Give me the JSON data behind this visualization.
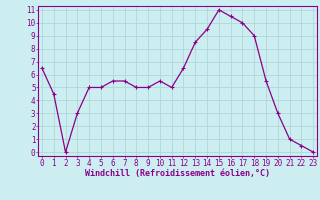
{
  "x": [
    0,
    1,
    2,
    3,
    4,
    5,
    6,
    7,
    8,
    9,
    10,
    11,
    12,
    13,
    14,
    15,
    16,
    17,
    18,
    19,
    20,
    21,
    22,
    23
  ],
  "y": [
    6.5,
    4.5,
    0.0,
    3.0,
    5.0,
    5.0,
    5.5,
    5.5,
    5.0,
    5.0,
    5.5,
    5.0,
    6.5,
    8.5,
    9.5,
    11.0,
    10.5,
    10.0,
    9.0,
    5.5,
    3.0,
    1.0,
    0.5,
    0.0
  ],
  "line_color": "#8B008B",
  "marker": "+",
  "bg_color": "#cdeef0",
  "grid_color": "#b0d8d8",
  "ylabel_ticks": [
    0,
    1,
    2,
    3,
    4,
    5,
    6,
    7,
    8,
    9,
    10,
    11
  ],
  "xlabel_ticks": [
    0,
    1,
    2,
    3,
    4,
    5,
    6,
    7,
    8,
    9,
    10,
    11,
    12,
    13,
    14,
    15,
    16,
    17,
    18,
    19,
    20,
    21,
    22,
    23
  ],
  "xlim": [
    -0.3,
    23.3
  ],
  "ylim": [
    -0.3,
    11.3
  ],
  "xlabel": "Windchill (Refroidissement éolien,°C)",
  "axis_label_color": "#8B008B",
  "tick_color": "#8B008B",
  "spine_color": "#8B008B",
  "tick_fontsize": 5.5,
  "xlabel_fontsize": 6.0,
  "marker_size": 3,
  "linewidth": 0.9
}
